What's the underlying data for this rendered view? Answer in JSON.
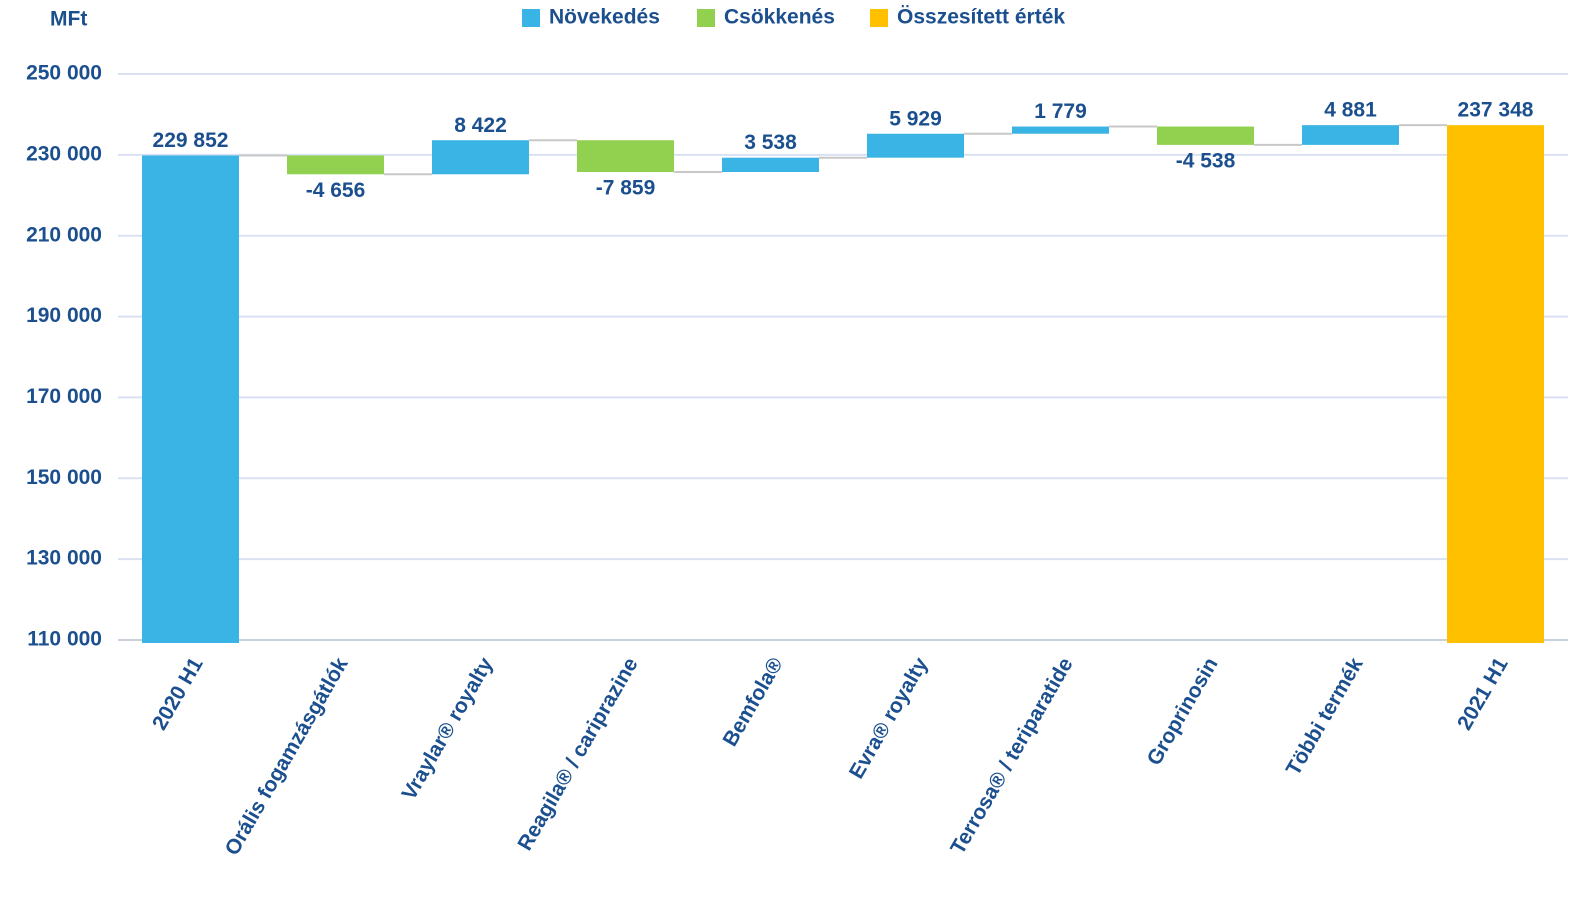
{
  "chart_data": {
    "type": "waterfall",
    "y_label": "MFt",
    "categories": [
      "2020 H1",
      "Orális fogamzásgátlók",
      "Vraylar® royalty",
      "Reagila® / cariprazine",
      "Bemfola®",
      "Evra® royalty",
      "Terrosa® / teriparatide",
      "Groprinosin",
      "Többi termék",
      "2021 H1"
    ],
    "series": [
      {
        "name": "Növekedés",
        "color": "#3ab3e5",
        "values": [
          229852,
          null,
          8422,
          null,
          3538,
          5929,
          1779,
          null,
          4881,
          null
        ],
        "value_labels": [
          "229 852",
          null,
          "8 422",
          null,
          "3 538",
          "5 929",
          "1 779",
          null,
          "4 881",
          null
        ]
      },
      {
        "name": "Csökkenés",
        "color": "#92d050",
        "values": [
          null,
          -4656,
          null,
          -7859,
          null,
          null,
          null,
          -4538,
          null,
          null
        ],
        "value_labels": [
          null,
          "-4 656",
          null,
          "-7 859",
          null,
          null,
          null,
          "-4 538",
          null,
          null
        ]
      },
      {
        "name": "Összesített érték",
        "color": "#ffc000",
        "total": true,
        "values": [
          null,
          null,
          null,
          null,
          null,
          null,
          null,
          null,
          null,
          237348
        ],
        "value_labels": [
          null,
          null,
          null,
          null,
          null,
          null,
          null,
          null,
          null,
          "237 348"
        ]
      }
    ],
    "ylim": [
      110000,
      250000
    ],
    "yticks": [
      {
        "value": 110000,
        "label": "110 000"
      },
      {
        "value": 130000,
        "label": "130 000"
      },
      {
        "value": 150000,
        "label": "150 000"
      },
      {
        "value": 170000,
        "label": "170 000"
      },
      {
        "value": 190000,
        "label": "190 000"
      },
      {
        "value": 210000,
        "label": "210 000"
      },
      {
        "value": 230000,
        "label": "230 000"
      },
      {
        "value": 250000,
        "label": "250 000"
      }
    ],
    "grid": true
  }
}
